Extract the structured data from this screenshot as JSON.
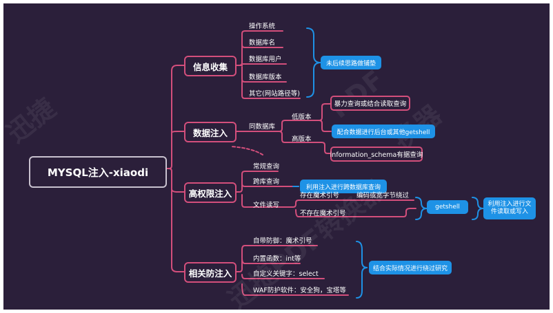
{
  "root": "MYSQL注入-xiaodi",
  "branches": [
    {
      "title": "信息收集",
      "items": [
        "操作系统",
        "数据库名",
        "数据库用户",
        "数据库版本",
        "其它(网站路径等)"
      ],
      "note": "未后续思路做铺垫"
    },
    {
      "title": "数据注入",
      "sub": "同数据库",
      "low": "低版本",
      "high": "高版本",
      "low_note": "暴力查询或结合读取查询",
      "high_note": "配合数据进行后台或其他getshell",
      "schema_note": "information_schema有据查询"
    },
    {
      "title": "高权限注入",
      "items": [
        "常规查询",
        "跨库查询",
        "文件读写"
      ],
      "cross_note": "利用注入进行跨数据库查询",
      "magic_yes": "存在魔术引号",
      "magic_no": "不存在魔术引号",
      "encode": "编码或宽字节绕过",
      "getshell": "getshell",
      "getshell_note": "利用注入进行文件读取或写入"
    },
    {
      "title": "相关防注入",
      "items": [
        "自带防御：魔术引号",
        "内置函数：int等",
        "自定义关键字：select",
        "WAF防护软件：安全狗，宝塔等"
      ],
      "note": "结合实际情况进行绕过研究"
    }
  ]
}
